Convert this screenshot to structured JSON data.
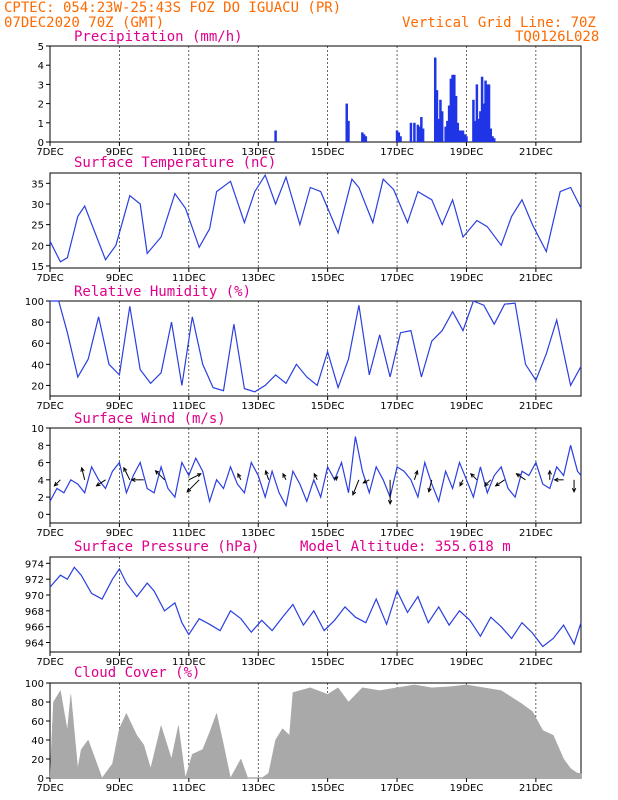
{
  "header": {
    "line1": "CPTEC:  054:23W-25:43S  FOZ DO IGUACU (PR)",
    "line2_left": "07DEC2020 70Z (GMT)",
    "line2_right": "Vertical Grid Line: 70Z",
    "line3_right": "TQ0126L028"
  },
  "x_ticks": [
    "7DEC",
    "9DEC",
    "11DEC",
    "13DEC",
    "15DEC",
    "17DEC",
    "19DEC",
    "21DEC"
  ],
  "x_tick_days": [
    0,
    2,
    4,
    6,
    8,
    10,
    12,
    14
  ],
  "x_range_days": [
    0,
    15.3
  ],
  "panels": [
    {
      "key": "precip",
      "title": "Precipitation (mm/h)",
      "extra": ""
    },
    {
      "key": "temp",
      "title": "Surface Temperature (nC)",
      "extra": ""
    },
    {
      "key": "rh",
      "title": "Relative Humidity (%)",
      "extra": ""
    },
    {
      "key": "wind",
      "title": "Surface Wind (m/s)",
      "extra": ""
    },
    {
      "key": "pres",
      "title": "Surface Pressure (hPa)",
      "extra": "Model Altitude: 355.618 m"
    },
    {
      "key": "cloud",
      "title": "Cloud Cover (%)",
      "extra": ""
    }
  ],
  "colors": {
    "header": "#ff6a00",
    "title": "#e0008c",
    "line": "#2b3fe0",
    "bar": "#1f35e6",
    "cloud": "#a9a9a9",
    "arrow": "#000000"
  },
  "chart_data": [
    {
      "type": "bar",
      "name": "precip",
      "ylim": [
        0,
        5
      ],
      "yticks": [
        0,
        1,
        2,
        3,
        4,
        5
      ],
      "x_days": [
        6.5,
        8.55,
        8.6,
        9.0,
        9.05,
        9.1,
        10.0,
        10.05,
        10.1,
        10.4,
        10.5,
        10.6,
        10.65,
        10.7,
        10.75,
        11.1,
        11.15,
        11.2,
        11.25,
        11.3,
        11.4,
        11.45,
        11.5,
        11.55,
        11.6,
        11.65,
        11.7,
        11.75,
        11.8,
        11.85,
        11.9,
        11.95,
        12.0,
        12.2,
        12.25,
        12.3,
        12.35,
        12.4,
        12.45,
        12.5,
        12.55,
        12.6,
        12.65,
        12.7,
        12.75,
        12.8
      ],
      "values": [
        0.6,
        2.0,
        1.1,
        0.5,
        0.4,
        0.3,
        0.6,
        0.5,
        0.3,
        1.0,
        1.0,
        0.9,
        0.8,
        1.3,
        0.7,
        4.4,
        2.7,
        1.2,
        2.2,
        1.6,
        0.8,
        1.1,
        1.9,
        3.3,
        3.5,
        3.5,
        2.4,
        1.0,
        0.6,
        0.6,
        0.6,
        0.4,
        0.3,
        2.2,
        1.1,
        3.0,
        1.2,
        1.6,
        3.4,
        2.0,
        3.2,
        3.0,
        3.0,
        0.7,
        0.3,
        0.2
      ]
    },
    {
      "type": "line",
      "name": "temp",
      "ylim": [
        14.5,
        37.5
      ],
      "yticks": [
        15,
        20,
        25,
        30,
        35
      ],
      "x_days": [
        0,
        0.3,
        0.5,
        0.8,
        1.0,
        1.3,
        1.6,
        1.9,
        2.3,
        2.6,
        2.8,
        3.2,
        3.6,
        3.9,
        4.3,
        4.6,
        4.8,
        5.2,
        5.6,
        5.9,
        6.2,
        6.5,
        6.8,
        7.2,
        7.5,
        7.8,
        8.3,
        8.7,
        8.9,
        9.3,
        9.6,
        9.9,
        10.3,
        10.6,
        11.0,
        11.3,
        11.6,
        11.9,
        12.3,
        12.6,
        13.0,
        13.3,
        13.6,
        13.9,
        14.3,
        14.7,
        15.0,
        15.3
      ],
      "values": [
        21,
        16,
        17,
        27,
        29.5,
        23,
        16.5,
        20,
        32,
        30,
        18,
        22,
        32.5,
        29,
        19.5,
        24,
        33,
        35.5,
        25.5,
        33,
        37,
        30,
        36.5,
        25,
        34,
        33,
        23,
        36,
        34,
        25.5,
        36,
        33.5,
        25.5,
        33,
        31,
        25,
        31,
        22,
        26,
        24.5,
        20,
        27,
        31,
        25,
        18.5,
        33,
        34,
        29
      ]
    },
    {
      "type": "line",
      "name": "rh",
      "ylim": [
        10,
        100
      ],
      "yticks": [
        20,
        40,
        60,
        80,
        100
      ],
      "x_days": [
        0,
        0.25,
        0.5,
        0.8,
        1.1,
        1.4,
        1.7,
        2.0,
        2.3,
        2.6,
        2.9,
        3.2,
        3.5,
        3.8,
        4.1,
        4.4,
        4.7,
        5.0,
        5.3,
        5.6,
        5.9,
        6.2,
        6.5,
        6.8,
        7.1,
        7.4,
        7.7,
        8.0,
        8.3,
        8.6,
        8.9,
        9.2,
        9.5,
        9.8,
        10.1,
        10.4,
        10.7,
        11.0,
        11.3,
        11.6,
        11.9,
        12.2,
        12.5,
        12.8,
        13.1,
        13.4,
        13.7,
        14.0,
        14.3,
        14.6,
        15.0,
        15.3
      ],
      "values": [
        100,
        100,
        70,
        28,
        45,
        85,
        40,
        30,
        95,
        35,
        22,
        32,
        80,
        20,
        85,
        40,
        18,
        15,
        78,
        17,
        14,
        20,
        30,
        22,
        40,
        28,
        20,
        52,
        18,
        45,
        96,
        30,
        68,
        28,
        70,
        72,
        28,
        62,
        72,
        90,
        72,
        100,
        96,
        78,
        97,
        98,
        40,
        25,
        50,
        82,
        20,
        38
      ]
    },
    {
      "type": "line",
      "name": "wind",
      "ylim": [
        -1,
        10
      ],
      "yticks": [
        0,
        2,
        4,
        6,
        8,
        10
      ],
      "x_days": [
        0,
        0.2,
        0.4,
        0.6,
        0.8,
        1.0,
        1.2,
        1.4,
        1.6,
        1.8,
        2.0,
        2.2,
        2.4,
        2.6,
        2.8,
        3.0,
        3.2,
        3.4,
        3.6,
        3.8,
        4.0,
        4.2,
        4.4,
        4.6,
        4.8,
        5.0,
        5.2,
        5.4,
        5.6,
        5.8,
        6.0,
        6.2,
        6.4,
        6.6,
        6.8,
        7.0,
        7.2,
        7.4,
        7.6,
        7.8,
        8.0,
        8.2,
        8.4,
        8.6,
        8.8,
        9.0,
        9.2,
        9.4,
        9.6,
        9.8,
        10.0,
        10.2,
        10.4,
        10.6,
        10.8,
        11.0,
        11.2,
        11.4,
        11.6,
        11.8,
        12.0,
        12.2,
        12.4,
        12.6,
        12.8,
        13.0,
        13.2,
        13.4,
        13.6,
        13.8,
        14.0,
        14.2,
        14.4,
        14.6,
        14.8,
        15.0,
        15.2,
        15.3
      ],
      "values": [
        1.5,
        3.0,
        2.5,
        4.0,
        3.5,
        2.5,
        5.5,
        4.0,
        3.0,
        5.0,
        6.0,
        2.5,
        4.5,
        6.0,
        3.0,
        2.5,
        5.5,
        3.0,
        2.0,
        6.0,
        4.5,
        6.5,
        5.0,
        1.5,
        4.0,
        3.0,
        5.5,
        3.5,
        2.5,
        6.0,
        4.5,
        2.0,
        5.0,
        2.5,
        1.0,
        5.0,
        3.5,
        1.5,
        4.0,
        2.0,
        5.5,
        4.0,
        6.0,
        2.5,
        9.0,
        5.0,
        2.5,
        5.5,
        4.0,
        2.0,
        5.5,
        5.0,
        4.0,
        2.0,
        6.0,
        3.5,
        1.5,
        5.0,
        3.0,
        6.0,
        4.0,
        2.0,
        5.5,
        2.5,
        4.5,
        5.5,
        3.0,
        2.0,
        5.0,
        4.5,
        6.0,
        3.5,
        3.0,
        5.5,
        4.5,
        8.0,
        5.0,
        4.5
      ],
      "arrows": [
        {
          "day": 0.3,
          "u": -1.0,
          "v": -1.0
        },
        {
          "day": 1.0,
          "u": -0.5,
          "v": 2.0
        },
        {
          "day": 1.6,
          "u": -1.5,
          "v": -1.0
        },
        {
          "day": 2.3,
          "u": -1.0,
          "v": 2.0
        },
        {
          "day": 2.7,
          "u": -2.0,
          "v": 0.0
        },
        {
          "day": 3.3,
          "u": -1.5,
          "v": 1.5
        },
        {
          "day": 4.0,
          "u": 2.0,
          "v": 1.0
        },
        {
          "day": 4.3,
          "u": -2.0,
          "v": -2.0
        },
        {
          "day": 5.5,
          "u": -0.5,
          "v": 1.0
        },
        {
          "day": 6.3,
          "u": -0.5,
          "v": 1.5
        },
        {
          "day": 6.8,
          "u": -0.5,
          "v": 1.0
        },
        {
          "day": 7.7,
          "u": -0.5,
          "v": 1.0
        },
        {
          "day": 8.2,
          "u": 0.5,
          "v": 0.5
        },
        {
          "day": 8.9,
          "u": -1.0,
          "v": -2.5
        },
        {
          "day": 9.2,
          "u": -1.0,
          "v": -0.5
        },
        {
          "day": 9.8,
          "u": 0.0,
          "v": -4.0
        },
        {
          "day": 10.5,
          "u": 0.5,
          "v": 1.5
        },
        {
          "day": 11.0,
          "u": -0.5,
          "v": -2.0
        },
        {
          "day": 11.9,
          "u": -0.5,
          "v": -1.0
        },
        {
          "day": 12.3,
          "u": -1.0,
          "v": 1.0
        },
        {
          "day": 12.7,
          "u": -1.0,
          "v": -1.0
        },
        {
          "day": 13.1,
          "u": -1.5,
          "v": -1.0
        },
        {
          "day": 13.7,
          "u": -1.5,
          "v": 1.0
        },
        {
          "day": 14.4,
          "u": 0.0,
          "v": 1.5
        },
        {
          "day": 14.8,
          "u": -1.5,
          "v": 0.0
        },
        {
          "day": 15.1,
          "u": 0.0,
          "v": -2.0
        }
      ]
    },
    {
      "type": "line",
      "name": "pres",
      "ylim": [
        962.8,
        974.8
      ],
      "yticks": [
        964,
        966,
        968,
        970,
        972,
        974
      ],
      "x_days": [
        0,
        0.3,
        0.5,
        0.7,
        0.9,
        1.2,
        1.5,
        1.8,
        2.0,
        2.2,
        2.5,
        2.8,
        3.0,
        3.3,
        3.6,
        3.8,
        4.0,
        4.3,
        4.6,
        4.9,
        5.2,
        5.5,
        5.8,
        6.1,
        6.4,
        6.7,
        7.0,
        7.3,
        7.6,
        7.9,
        8.2,
        8.5,
        8.8,
        9.1,
        9.4,
        9.7,
        10.0,
        10.3,
        10.6,
        10.9,
        11.2,
        11.5,
        11.8,
        12.1,
        12.4,
        12.7,
        13.0,
        13.3,
        13.6,
        13.9,
        14.2,
        14.5,
        14.8,
        15.1,
        15.3
      ],
      "values": [
        971,
        972.5,
        972,
        973.5,
        972.5,
        970.2,
        969.5,
        972,
        973.3,
        971.5,
        969.8,
        971.5,
        970.5,
        968,
        969,
        966.5,
        965,
        967,
        966.3,
        965.5,
        968,
        967,
        965.3,
        966.8,
        965.5,
        967.2,
        968.8,
        966.2,
        968,
        965.5,
        966.8,
        968.5,
        967.2,
        966.5,
        969.5,
        966.3,
        970.5,
        967.8,
        969.8,
        966.5,
        968.5,
        966.2,
        968,
        966.8,
        964.8,
        967.2,
        966,
        964.5,
        966.5,
        965.2,
        963.5,
        964.5,
        966.2,
        963.8,
        966.5
      ]
    },
    {
      "type": "area",
      "name": "cloud",
      "ylim": [
        0,
        100
      ],
      "yticks": [
        0,
        20,
        40,
        60,
        80,
        100
      ],
      "x_days": [
        0,
        0.1,
        0.3,
        0.5,
        0.6,
        0.8,
        0.9,
        1.1,
        1.3,
        1.5,
        1.8,
        2.0,
        2.2,
        2.5,
        2.7,
        2.9,
        3.2,
        3.5,
        3.7,
        3.9,
        4.1,
        4.4,
        4.6,
        4.8,
        5.0,
        5.2,
        5.5,
        5.7,
        5.9,
        6.1,
        6.3,
        6.5,
        6.7,
        6.9,
        7.0,
        7.5,
        8.0,
        8.3,
        8.6,
        9.0,
        9.5,
        10.0,
        10.5,
        11.0,
        11.5,
        12.0,
        12.5,
        13.0,
        13.3,
        13.6,
        13.9,
        14.2,
        14.5,
        14.8,
        15.0,
        15.2,
        15.3
      ],
      "values": [
        0,
        80,
        92,
        50,
        88,
        10,
        30,
        40,
        20,
        0,
        15,
        52,
        68,
        45,
        35,
        10,
        55,
        20,
        55,
        0,
        25,
        30,
        48,
        68,
        35,
        0,
        20,
        0,
        0,
        0,
        5,
        40,
        52,
        45,
        90,
        95,
        88,
        95,
        80,
        95,
        92,
        95,
        98,
        95,
        96,
        98,
        95,
        92,
        85,
        78,
        70,
        50,
        45,
        20,
        10,
        5,
        5
      ]
    }
  ]
}
